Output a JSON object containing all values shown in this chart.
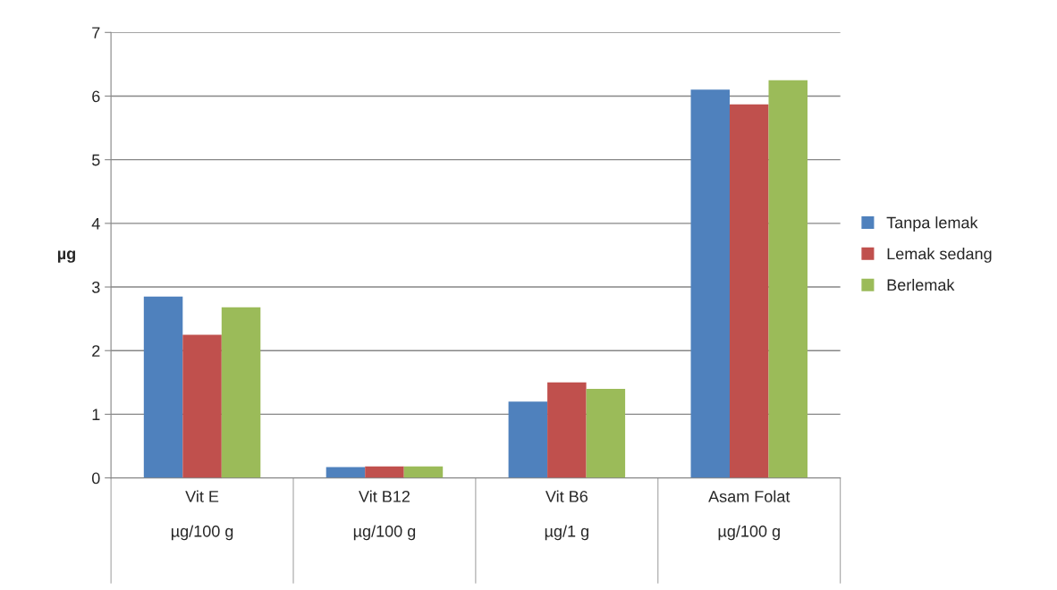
{
  "chart_data": {
    "type": "bar",
    "categories": [
      "Vit E\n\nµg/100 g",
      "Vit B12\n\nµg/100 g",
      "Vit B6\n\nµg/1 g",
      "Asam Folat\n\nµg/100 g"
    ],
    "ylabel": "µg",
    "series": [
      {
        "name": "Tanpa lemak",
        "color": "#4f81bd",
        "values": [
          2.85,
          0.17,
          1.2,
          6.1
        ]
      },
      {
        "name": "Lemak sedang",
        "color": "#c0504d",
        "values": [
          2.25,
          0.18,
          1.5,
          5.87
        ]
      },
      {
        "name": "Berlemak",
        "color": "#9bbb59",
        "values": [
          2.68,
          0.18,
          1.4,
          6.25
        ]
      }
    ],
    "ylim": [
      0,
      7
    ],
    "yticks": [
      0,
      1,
      2,
      3,
      4,
      5,
      6,
      7
    ],
    "grid": "y",
    "legend": "right"
  }
}
